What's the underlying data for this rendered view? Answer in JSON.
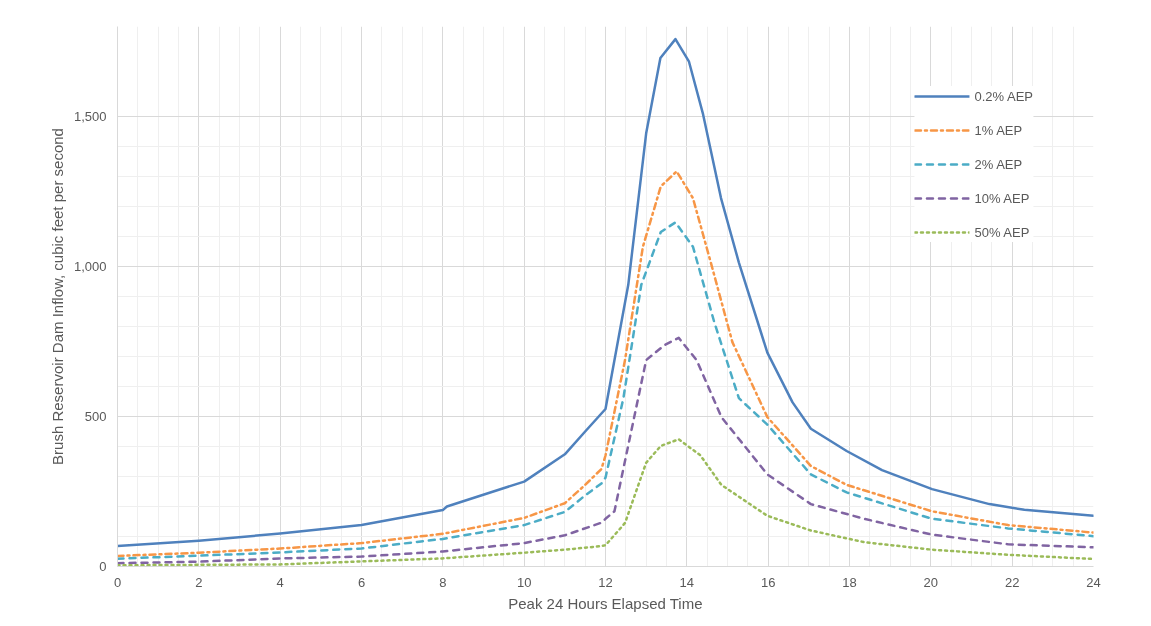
{
  "chart_data": {
    "type": "line",
    "xlabel": "Peak 24 Hours Elapsed Time",
    "ylabel": "Brush Reservoir Dam Inflow, cubic feet per second",
    "xlim": [
      0,
      24
    ],
    "xticks": [
      0,
      2,
      4,
      6,
      8,
      10,
      12,
      14,
      16,
      18,
      20,
      22,
      24
    ],
    "ylim": [
      0,
      1800
    ],
    "yticks": [
      0,
      500,
      {
        "value": 1000,
        "label": "1,000"
      },
      {
        "value": 1500,
        "label": "1,500"
      }
    ],
    "grid": true,
    "legend": "top right",
    "marker": "none",
    "series": [
      {
        "name": "0.2% AEP",
        "color": "#4f81bd",
        "line_style": "solid",
        "x": [
          0,
          2,
          4,
          6,
          8,
          8.1,
          10,
          11,
          11.5,
          12,
          12.56,
          13.0,
          13.35,
          13.72,
          14.05,
          14.4,
          14.84,
          15.28,
          15.98,
          16.6,
          17.05,
          17.93,
          18.8,
          20.03,
          21.44,
          22.3,
          24
        ],
        "values": [
          68,
          86,
          110,
          138,
          188,
          200,
          283,
          374,
          450,
          525,
          939,
          1444,
          1695,
          1758,
          1684,
          1507,
          1228,
          1013,
          713,
          547,
          459,
          385,
          321,
          258,
          208,
          189,
          169
        ]
      },
      {
        "name": "1% AEP",
        "color": "#f79646",
        "line_style": "dashdot",
        "x": [
          0,
          2,
          4,
          6,
          8,
          10,
          11,
          11.5,
          11.9,
          12,
          12.48,
          12.92,
          13.36,
          13.75,
          14.15,
          14.59,
          15.12,
          15.98,
          17.05,
          17.93,
          20.03,
          21.9,
          24
        ],
        "values": [
          35,
          46,
          60,
          78,
          109,
          162,
          211,
          272,
          325,
          370,
          688,
          1066,
          1267,
          1317,
          1228,
          1013,
          748,
          498,
          335,
          272,
          184,
          138,
          113
        ]
      },
      {
        "name": "2% AEP",
        "color": "#4bacc6",
        "line_style": "dashed",
        "x": [
          0,
          2,
          4,
          6,
          8,
          10,
          11,
          11.5,
          11.9,
          12,
          12.44,
          12.88,
          13.36,
          13.72,
          14.15,
          14.68,
          15.28,
          15.98,
          17.05,
          17.93,
          20.03,
          21.9,
          24
        ],
        "values": [
          26,
          36,
          47,
          60,
          92,
          138,
          182,
          237,
          277,
          296,
          561,
          939,
          1115,
          1147,
          1066,
          812,
          561,
          473,
          307,
          247,
          159,
          127,
          101
        ]
      },
      {
        "name": "10% AEP",
        "color": "#8064a2",
        "line_style": "dashed",
        "x": [
          0,
          2,
          4,
          6,
          8,
          10,
          11,
          11.9,
          12,
          12.22,
          13.0,
          13.45,
          13.8,
          14.24,
          14.85,
          15.98,
          17.05,
          18.36,
          20.03,
          21.9,
          24
        ],
        "values": [
          11,
          16,
          27,
          33,
          50,
          78,
          104,
          146,
          159,
          184,
          688,
          738,
          762,
          688,
          498,
          307,
          208,
          159,
          106,
          74,
          64
        ]
      },
      {
        "name": "50% AEP",
        "color": "#9bbb59",
        "line_style": "dotted",
        "x": [
          0,
          4,
          8,
          10,
          11,
          11.9,
          12,
          12.48,
          13.0,
          13.36,
          13.8,
          14.33,
          14.85,
          15.98,
          17.05,
          18.36,
          20.03,
          21.9,
          24
        ],
        "values": [
          4,
          7,
          27,
          46,
          56,
          68,
          71,
          145,
          346,
          402,
          424,
          371,
          272,
          169,
          120,
          81,
          56,
          39,
          25
        ]
      }
    ]
  }
}
